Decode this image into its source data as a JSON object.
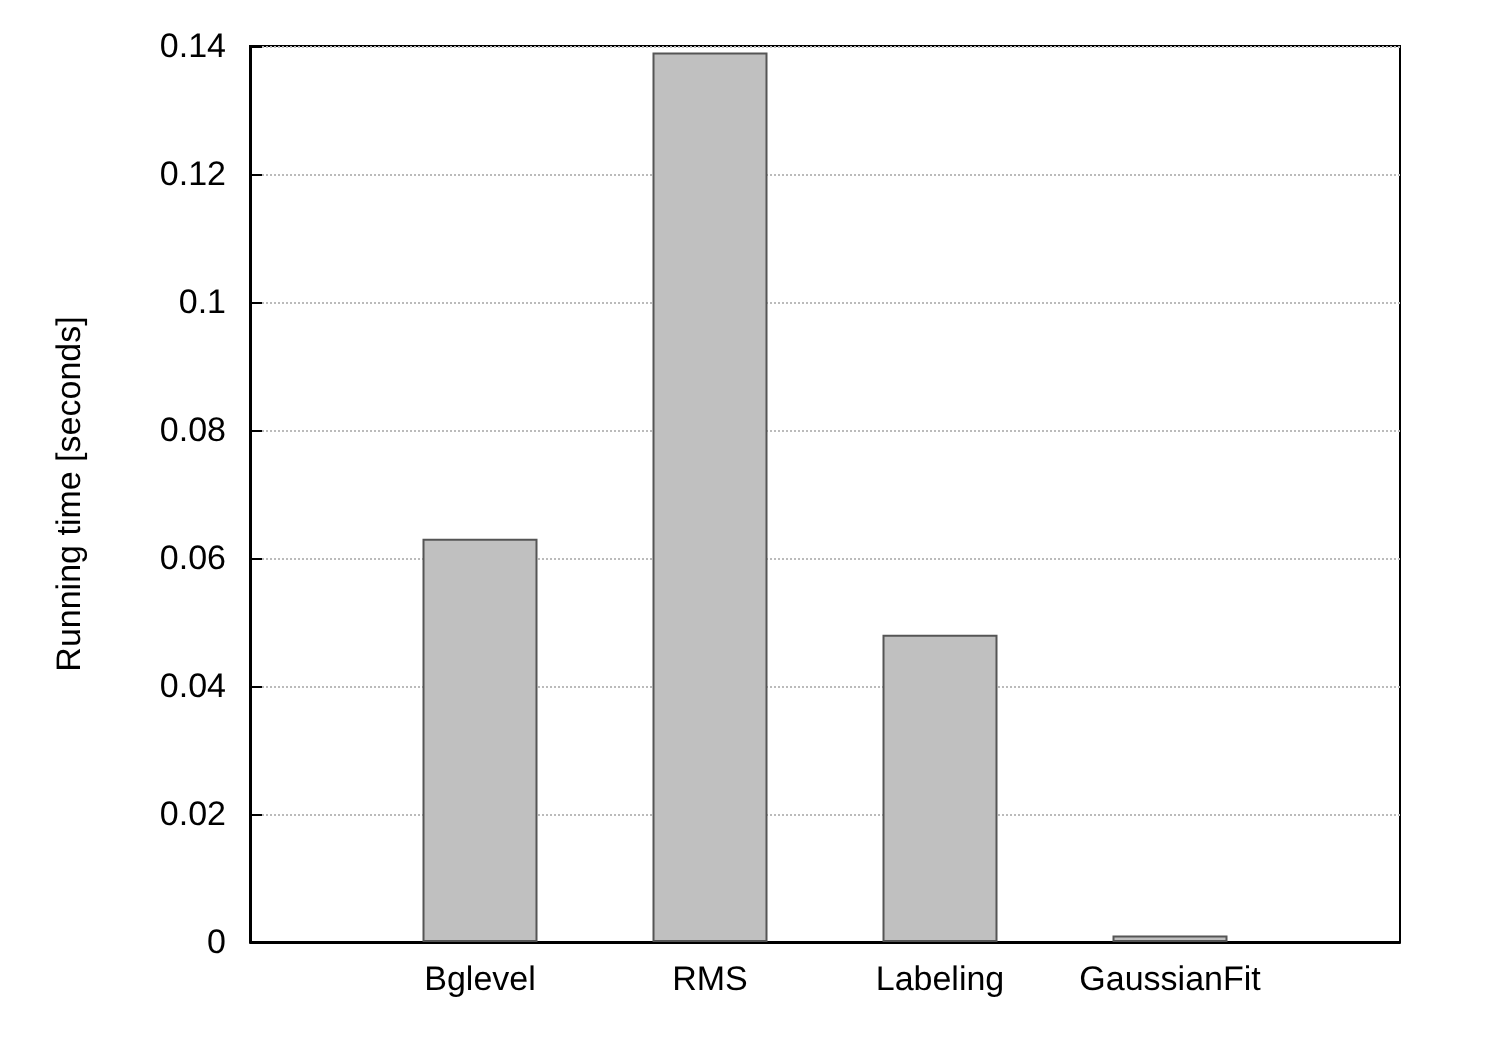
{
  "chart_data": {
    "type": "bar",
    "ylabel": "Running time [seconds]",
    "categories": [
      null,
      "Bglevel",
      "RMS",
      "Labeling",
      "GaussianFit",
      null
    ],
    "values": [
      null,
      0.063,
      0.139,
      0.048,
      0.001,
      null
    ],
    "color": "#c0c0c0",
    "ylim": [
      0,
      0.14
    ],
    "yticks": [
      0,
      0.02,
      0.04,
      0.06,
      0.08,
      0.1,
      0.12,
      0.14
    ],
    "grid": "y"
  }
}
